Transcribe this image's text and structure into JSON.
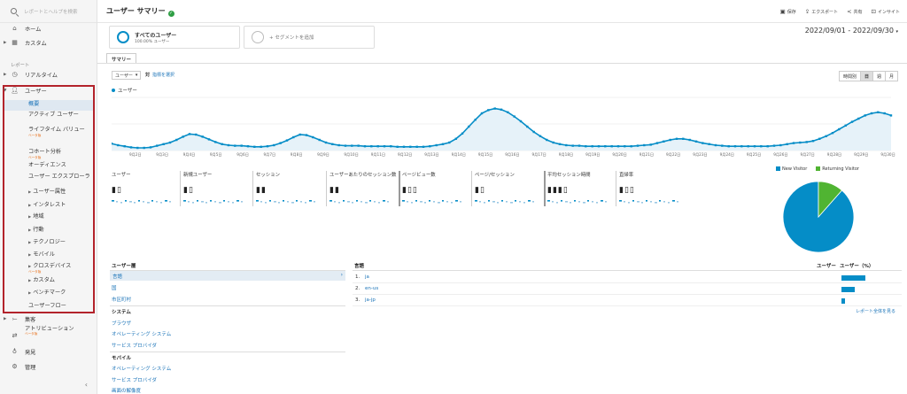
{
  "sidebar": {
    "search_placeholder": "レポートとヘルプを検索",
    "home": "ホーム",
    "custom": "カスタム",
    "reports_section": "レポート",
    "realtime": "リアルタイム",
    "users": "ユーザー",
    "users_sub": [
      {
        "label": "概要",
        "active": true
      },
      {
        "label": "アクティブ ユーザー"
      },
      {
        "label": "ライフタイム バリュー",
        "beta": "ベータ版"
      },
      {
        "label": "コホート分析",
        "beta": "ベータ版"
      },
      {
        "label": "オーディエンス"
      },
      {
        "label": "ユーザー エクスプローラ"
      },
      {
        "label": "ユーザー属性",
        "expand": true
      },
      {
        "label": "インタレスト",
        "expand": true
      },
      {
        "label": "地域",
        "expand": true
      },
      {
        "label": "行動",
        "expand": true
      },
      {
        "label": "テクノロジー",
        "expand": true
      },
      {
        "label": "モバイル",
        "expand": true
      },
      {
        "label": "クロスデバイス",
        "expand": true,
        "beta": "ベータ版"
      },
      {
        "label": "カスタム",
        "expand": true
      },
      {
        "label": "ベンチマーク",
        "expand": true
      },
      {
        "label": "ユーザーフロー"
      }
    ],
    "acquisition": "集客",
    "attribution": "アトリビューション",
    "attribution_beta": "ベータ版",
    "discover": "発見",
    "admin": "管理",
    "collapse": "‹"
  },
  "header": {
    "title": "ユーザー サマリー",
    "save": "保存",
    "export": "エクスポート",
    "share": "共有",
    "insights": "インサイト"
  },
  "segments": {
    "all_users": "すべてのユーザー",
    "all_users_pct": "100.00% ユーザー",
    "add_segment": "+ セグメントを追加"
  },
  "date_range": "2022/09/01 - 2022/09/30",
  "tabs": {
    "summary": "サマリー"
  },
  "controls": {
    "metric": "ユーザー",
    "vs": "対",
    "select_metric": "指標を選択",
    "granularity": [
      "時間別",
      "日",
      "週",
      "月"
    ],
    "granularity_active": 1
  },
  "chart_data": {
    "type": "line",
    "series": [
      {
        "name": "ユーザー"
      }
    ],
    "x": [
      "9月2日",
      "9月3日",
      "9月4日",
      "9月5日",
      "9月6日",
      "9月7日",
      "9月8日",
      "9月9日",
      "9月10日",
      "9月11日",
      "9月12日",
      "9月13日",
      "9月14日",
      "9月15日",
      "9月16日",
      "9月17日",
      "9月18日",
      "9月19日",
      "9月20日",
      "9月21日",
      "9月22日",
      "9月23日",
      "9月24日",
      "9月25日",
      "9月26日",
      "9月27日",
      "9月28日",
      "9月29日",
      "9月30日"
    ],
    "hourly_profile": [
      0.13,
      0.1,
      0.08,
      0.06,
      0.05,
      0.05,
      0.06,
      0.09,
      0.12,
      0.15,
      0.2,
      0.26,
      0.31,
      0.3,
      0.26,
      0.21,
      0.16,
      0.12,
      0.1,
      0.09,
      0.09,
      0.08,
      0.07,
      0.07,
      0.08,
      0.1,
      0.14,
      0.19,
      0.25,
      0.3,
      0.29,
      0.25,
      0.2,
      0.15,
      0.12,
      0.1,
      0.09,
      0.09,
      0.09,
      0.08,
      0.08,
      0.08,
      0.08,
      0.08,
      0.07,
      0.07,
      0.07,
      0.07,
      0.07,
      0.08,
      0.1,
      0.12,
      0.15,
      0.22,
      0.32,
      0.45,
      0.58,
      0.7,
      0.76,
      0.79,
      0.77,
      0.72,
      0.64,
      0.55,
      0.45,
      0.35,
      0.27,
      0.2,
      0.15,
      0.12,
      0.1,
      0.09,
      0.09,
      0.08,
      0.08,
      0.08,
      0.08,
      0.08,
      0.08,
      0.08,
      0.08,
      0.09,
      0.1,
      0.11,
      0.14,
      0.17,
      0.2,
      0.22,
      0.22,
      0.2,
      0.17,
      0.14,
      0.12,
      0.1,
      0.09,
      0.08,
      0.08,
      0.08,
      0.08,
      0.08,
      0.08,
      0.08,
      0.09,
      0.1,
      0.12,
      0.14,
      0.15,
      0.16,
      0.18,
      0.22,
      0.27,
      0.33,
      0.4,
      0.47,
      0.54,
      0.6,
      0.66,
      0.7,
      0.72,
      0.7,
      0.66
    ],
    "ylim": [
      0,
      1
    ]
  },
  "scorecards": [
    {
      "label": "ユーザー",
      "value": "▮▯"
    },
    {
      "label": "新規ユーザー",
      "value": "▮▯"
    },
    {
      "label": "セッション",
      "value": "▮▮"
    },
    {
      "label": "ユーザーあたりのセッション数",
      "value": "▮▮"
    },
    {
      "label": "ページビュー数",
      "value": "▮▯▯"
    },
    {
      "label": "ページ/セッション",
      "value": "▮▯"
    },
    {
      "label": "平均セッション時間",
      "value": "▮▮▮▯"
    },
    {
      "label": "直帰率",
      "value": "▮▯▯"
    }
  ],
  "pie": {
    "legend": [
      "New Visitor",
      "Returning Visitor"
    ],
    "new_pct": 88.5,
    "returning_pct": 11.5,
    "colors": {
      "new": "#058dc7",
      "returning": "#50b432"
    }
  },
  "user_type_table": {
    "heading": "ユーザー層",
    "language": "言語",
    "country": "国",
    "city": "市区町村",
    "system_heading": "システム",
    "browser": "ブラウザ",
    "os": "オペレーティング システム",
    "isp": "サービス プロバイダ",
    "mobile_heading": "モバイル",
    "mobile_os": "オペレーティング システム",
    "mobile_isp": "サービス プロバイダ",
    "screen_res": "画面の解像度"
  },
  "language_table": {
    "heading": "言語",
    "col_users": "ユーザー",
    "col_pct": "ユーザー（%）",
    "rows": [
      {
        "index": "1.",
        "lang": "ja",
        "pct": 80
      },
      {
        "index": "2.",
        "lang": "en-us",
        "pct": 43
      },
      {
        "index": "3.",
        "lang": "ja-jp",
        "pct": 12
      }
    ],
    "full_report": "レポート全体を見る"
  }
}
